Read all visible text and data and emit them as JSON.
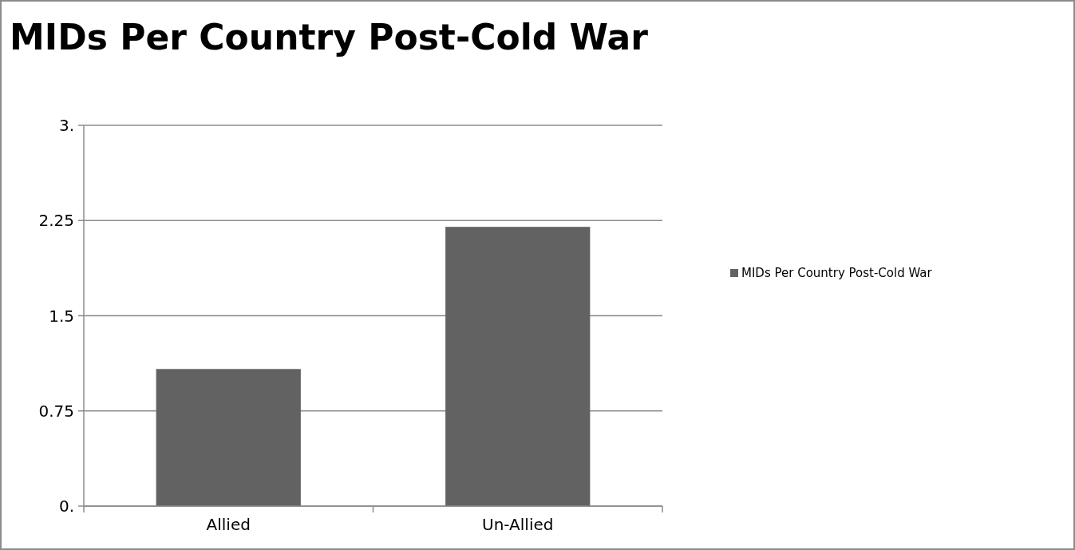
{
  "chart_data": {
    "type": "bar",
    "title": "MIDs Per Country Post-Cold War",
    "categories": [
      "Allied",
      "Un-Allied"
    ],
    "series": [
      {
        "name": "MIDs Per Country Post-Cold War",
        "color": "#626262",
        "values": [
          1.08,
          2.2
        ]
      }
    ],
    "ylim": [
      0,
      3
    ],
    "yticks": [
      {
        "value": 0,
        "label": "0."
      },
      0.75,
      1.5,
      2.25,
      {
        "value": 3,
        "label": "3."
      }
    ],
    "grid": "y",
    "legend": "right"
  }
}
